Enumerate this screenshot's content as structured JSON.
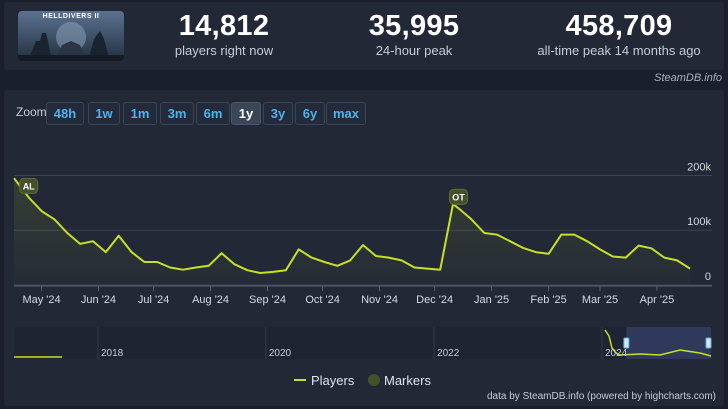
{
  "stats": [
    {
      "value": "14,812",
      "label": "players right now"
    },
    {
      "value": "35,995",
      "label": "24-hour peak"
    },
    {
      "value": "458,709",
      "label": "all-time peak 14 months ago"
    }
  ],
  "game": {
    "logo_text": "HELLDIVERS II"
  },
  "credit_top": "SteamDB.info",
  "zoom": {
    "label": "Zoom",
    "options": [
      "48h",
      "1w",
      "1m",
      "3m",
      "6m",
      "1y",
      "3y",
      "6y",
      "max"
    ],
    "selected": "1y"
  },
  "chart_data": {
    "type": "line",
    "series": [
      {
        "name": "Players",
        "color": "#c6e027"
      }
    ],
    "x": [
      "2024-04-16",
      "2024-04-24",
      "2024-05-01",
      "2024-05-08",
      "2024-05-15",
      "2024-05-22",
      "2024-05-29",
      "2024-06-05",
      "2024-06-12",
      "2024-06-19",
      "2024-06-26",
      "2024-07-03",
      "2024-07-10",
      "2024-07-17",
      "2024-07-24",
      "2024-07-31",
      "2024-08-07",
      "2024-08-14",
      "2024-08-21",
      "2024-08-28",
      "2024-09-04",
      "2024-09-11",
      "2024-09-18",
      "2024-09-25",
      "2024-10-02",
      "2024-10-09",
      "2024-10-16",
      "2024-10-23",
      "2024-10-30",
      "2024-11-06",
      "2024-11-13",
      "2024-11-20",
      "2024-11-27",
      "2024-12-04",
      "2024-12-11",
      "2024-12-14",
      "2024-12-21",
      "2024-12-28",
      "2025-01-04",
      "2025-01-11",
      "2025-01-18",
      "2025-01-25",
      "2025-02-01",
      "2025-02-08",
      "2025-02-15",
      "2025-02-22",
      "2025-03-01",
      "2025-03-08",
      "2025-03-15",
      "2025-03-22",
      "2025-03-29",
      "2025-04-05",
      "2025-04-12",
      "2025-04-19"
    ],
    "y": [
      195000,
      160000,
      135000,
      120000,
      95000,
      75000,
      80000,
      60000,
      90000,
      60000,
      42000,
      42000,
      32000,
      28000,
      32000,
      35000,
      58000,
      38000,
      27000,
      22000,
      24000,
      27000,
      65000,
      50000,
      42000,
      35000,
      45000,
      73000,
      53000,
      50000,
      45000,
      32000,
      30000,
      28000,
      148000,
      140000,
      120000,
      95000,
      92000,
      80000,
      68000,
      60000,
      57000,
      92000,
      92000,
      80000,
      65000,
      52000,
      50000,
      72000,
      67000,
      50000,
      45000,
      30000
    ],
    "y_ticks": [
      "0",
      "100k",
      "200k"
    ],
    "ylim": [
      0,
      210000
    ],
    "x_ticks": [
      "May '24",
      "Jun '24",
      "Jul '24",
      "Aug '24",
      "Sep '24",
      "Oct '24",
      "Nov '24",
      "Dec '24",
      "Jan '25",
      "Feb '25",
      "Mar '25",
      "Apr '25"
    ],
    "x_tick_dates": [
      "2024-05-01",
      "2024-06-01",
      "2024-07-01",
      "2024-08-01",
      "2024-09-01",
      "2024-10-01",
      "2024-11-01",
      "2024-12-01",
      "2025-01-01",
      "2025-02-01",
      "2025-03-01",
      "2025-04-01"
    ],
    "xlim": [
      "2024-04-16",
      "2025-04-19"
    ],
    "markers": [
      {
        "label": "AL",
        "date": "2024-04-24"
      },
      {
        "label": "OT",
        "date": "2024-12-14"
      }
    ],
    "navigator": {
      "x_ticks": [
        "2018",
        "2020",
        "2022",
        "2024"
      ],
      "selected_range": [
        "2024-04-16",
        "2025-04-19"
      ]
    },
    "legend": [
      {
        "name": "Players",
        "color": "#c6e027",
        "kind": "line"
      },
      {
        "name": "Markers",
        "color": "#44502c",
        "kind": "dot"
      }
    ],
    "legend_position": "bottom-center",
    "grid": true
  },
  "credit_bottom": "data by SteamDB.info (powered by highcharts.com)"
}
